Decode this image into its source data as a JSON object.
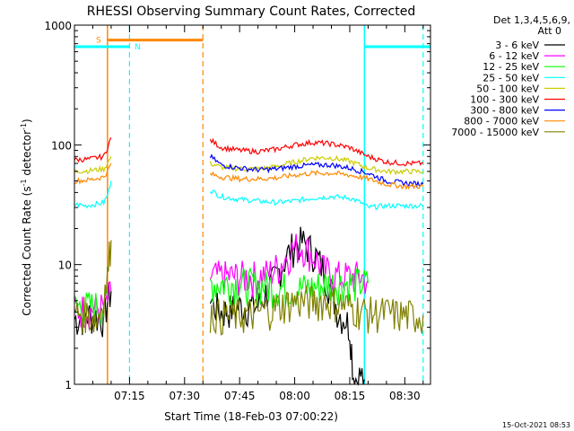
{
  "chart_data": {
    "type": "line",
    "title": "RHESSI Observing Summary Count Rates, Corrected",
    "ylabel_prefix": "Corrected Count Rate (s",
    "ylabel_exp": "-1",
    "ylabel_suffix": " detector",
    "ylabel_exp2": "-1",
    "ylabel_end": ")",
    "xlabel": "Start Time (18-Feb-03 07:00:22)",
    "timestamp": "15-Oct-2021 08:53",
    "yscale": "log",
    "ylim": [
      1,
      1000
    ],
    "xlim_minutes": [
      0,
      97
    ],
    "x_ticks": [
      {
        "label": "07:15",
        "minute": 15
      },
      {
        "label": "07:30",
        "minute": 30
      },
      {
        "label": "07:45",
        "minute": 45
      },
      {
        "label": "08:00",
        "minute": 60
      },
      {
        "label": "08:15",
        "minute": 75
      },
      {
        "label": "08:30",
        "minute": 90
      }
    ],
    "y_ticks": [
      {
        "label": "1",
        "value": 1
      },
      {
        "label": "10",
        "value": 10
      },
      {
        "label": "100",
        "value": 100
      },
      {
        "label": "1000",
        "value": 1000
      }
    ],
    "legend": {
      "header1": "Det 1,3,4,5,6,9,",
      "header2": "Att 0",
      "position": "top-right"
    },
    "series": [
      {
        "name": "3 - 6 keV",
        "color": "#000000",
        "segments": [
          {
            "x": [
              0,
              4,
              8,
              9,
              10
            ],
            "y": [
              3.5,
              3.8,
              3.6,
              5,
              6
            ]
          },
          {
            "x": [
              37,
              40,
              45,
              50,
              55,
              58,
              60,
              62,
              65,
              68,
              70,
              72,
              74,
              75,
              75.5,
              76,
              77,
              78,
              79
            ],
            "y": [
              5,
              4,
              4.5,
              4.5,
              8,
              12,
              15,
              15.5,
              13,
              9,
              6,
              4,
              3.5,
              3,
              2,
              1.2,
              1.1,
              1.2,
              1.1
            ]
          }
        ]
      },
      {
        "name": "6 - 12 keV",
        "color": "#ff00ff",
        "segments": [
          {
            "x": [
              0,
              4,
              8,
              9,
              10
            ],
            "y": [
              4.2,
              4.3,
              4.4,
              5,
              6
            ]
          },
          {
            "x": [
              37,
              40,
              45,
              50,
              53,
              56,
              58,
              60,
              62,
              64,
              66,
              68,
              70,
              72,
              75,
              78,
              80
            ],
            "y": [
              8,
              8,
              8,
              8,
              8.5,
              10,
              12,
              14,
              14.5,
              13,
              11,
              9,
              8.5,
              8,
              8,
              8,
              7.5
            ]
          }
        ]
      },
      {
        "name": "12 - 25 keV",
        "color": "#00ff00",
        "segments": [
          {
            "x": [
              0,
              4,
              8,
              9
            ],
            "y": [
              4.5,
              4.5,
              4.6,
              5.5
            ]
          },
          {
            "x": [
              37,
              40,
              45,
              50,
              55,
              60,
              65,
              70,
              75,
              80
            ],
            "y": [
              7,
              7,
              7,
              6.8,
              6.5,
              6.3,
              6.5,
              7,
              7,
              7
            ]
          }
        ]
      },
      {
        "name": "25 - 50 keV",
        "color": "#00ffff",
        "segments": [
          {
            "x": [
              0,
              3,
              6,
              8,
              9,
              10
            ],
            "y": [
              32,
              31,
              32,
              33,
              38,
              50
            ]
          },
          {
            "x": [
              37,
              40,
              45,
              50,
              55,
              60,
              65,
              70,
              75,
              78,
              80,
              85,
              90,
              95
            ],
            "y": [
              42,
              37,
              35,
              34,
              33,
              34,
              36,
              37,
              36,
              33,
              30,
              31,
              31,
              31
            ]
          }
        ]
      },
      {
        "name": "50 - 100 keV",
        "color": "#cccc00",
        "segments": [
          {
            "x": [
              0,
              4,
              8,
              9,
              10
            ],
            "y": [
              60,
              61,
              63,
              70,
              80
            ]
          },
          {
            "x": [
              37,
              40,
              45,
              50,
              55,
              60,
              65,
              70,
              75,
              80,
              85,
              90,
              95
            ],
            "y": [
              70,
              65,
              63,
              63,
              66,
              72,
              78,
              78,
              73,
              64,
              60,
              60,
              60
            ]
          }
        ]
      },
      {
        "name": "100 - 300 keV",
        "color": "#ff0000",
        "segments": [
          {
            "x": [
              0,
              4,
              8,
              9,
              10
            ],
            "y": [
              75,
              76,
              80,
              95,
              115
            ]
          },
          {
            "x": [
              37,
              40,
              45,
              50,
              55,
              60,
              65,
              70,
              75,
              80,
              85,
              90,
              95
            ],
            "y": [
              110,
              95,
              90,
              88,
              92,
              100,
              105,
              102,
              95,
              80,
              72,
              70,
              70
            ]
          }
        ]
      },
      {
        "name": "300 - 800 keV",
        "color": "#0000ff",
        "segments": [
          {
            "x": [
              37,
              40,
              45,
              50,
              55,
              60,
              65,
              70,
              75,
              80,
              85,
              90,
              95
            ],
            "y": [
              80,
              68,
              64,
              62,
              63,
              66,
              68,
              68,
              64,
              58,
              50,
              48,
              47
            ]
          }
        ]
      },
      {
        "name": "800 - 7000 keV",
        "color": "#ff8800",
        "segments": [
          {
            "x": [
              0,
              4,
              8,
              9,
              10
            ],
            "y": [
              50,
              51,
              54,
              60,
              70
            ]
          },
          {
            "x": [
              37,
              40,
              45,
              50,
              55,
              60,
              65,
              70,
              75,
              80,
              85,
              90,
              95
            ],
            "y": [
              57,
              54,
              52,
              52,
              53,
              56,
              58,
              58,
              56,
              52,
              47,
              45,
              45
            ]
          }
        ]
      },
      {
        "name": "7000 - 15000 keV",
        "color": "#808000",
        "segments": [
          {
            "x": [
              0,
              3,
              6,
              7,
              8,
              9,
              9.5,
              10
            ],
            "y": [
              4,
              4,
              3.5,
              4,
              5.5,
              8,
              12,
              16
            ]
          },
          {
            "x": [
              37,
              40,
              45,
              50,
              55,
              60,
              65,
              70,
              75,
              80,
              85,
              90,
              95
            ],
            "y": [
              4,
              3.8,
              3.8,
              4,
              4.5,
              5,
              5,
              5,
              4.5,
              4,
              4,
              3.8,
              3.8
            ]
          }
        ]
      }
    ],
    "annotations": {
      "s_label": "S",
      "n_label": "N",
      "night_bars": [
        {
          "from": 0,
          "to": 15,
          "value": 660,
          "color": "#00ffff"
        },
        {
          "from": 79,
          "to": 97,
          "value": 660,
          "color": "#00ffff"
        }
      ],
      "saa_bar": {
        "from": 9,
        "to": 35,
        "value": 750,
        "color": "#ff8800"
      },
      "solid_lines": [
        {
          "x": 9,
          "color": "#ff8800"
        },
        {
          "x": 79,
          "color": "#00ffff"
        }
      ],
      "dashed_lines": [
        {
          "x": 15,
          "color": "#00ffff"
        },
        {
          "x": 35,
          "color": "#ff8800"
        },
        {
          "x": 95,
          "color": "#00ffff"
        }
      ]
    }
  }
}
